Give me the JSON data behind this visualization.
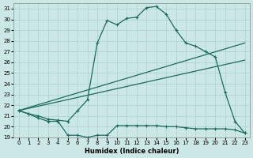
{
  "xlabel": "Humidex (Indice chaleur)",
  "bg_color": "#cce8e6",
  "grid_color": "#aacfcd",
  "line_color": "#1a6b5e",
  "xlim": [
    -0.5,
    23.5
  ],
  "ylim": [
    19,
    31.5
  ],
  "yticks": [
    19,
    20,
    21,
    22,
    23,
    24,
    25,
    26,
    27,
    28,
    29,
    30,
    31
  ],
  "xticks": [
    0,
    1,
    2,
    3,
    4,
    5,
    6,
    7,
    8,
    9,
    10,
    11,
    12,
    13,
    14,
    15,
    16,
    17,
    18,
    19,
    20,
    21,
    22,
    23
  ],
  "curve_main_x": [
    0,
    1,
    2,
    3,
    4,
    5,
    6,
    7,
    8,
    9,
    10,
    11,
    12,
    13,
    14,
    15,
    16,
    17,
    18,
    19,
    20,
    21,
    22,
    23
  ],
  "curve_main_y": [
    21.5,
    21.2,
    21.0,
    20.7,
    20.6,
    20.5,
    21.5,
    22.5,
    27.8,
    29.9,
    29.5,
    30.1,
    30.2,
    31.1,
    31.2,
    30.5,
    29.0,
    27.8,
    27.5,
    27.0,
    26.5,
    23.2,
    20.5,
    19.4
  ],
  "curve_line1_x": [
    0,
    23
  ],
  "curve_line1_y": [
    21.5,
    26.2
  ],
  "curve_line2_x": [
    0,
    23
  ],
  "curve_line2_y": [
    21.5,
    27.8
  ],
  "curve_min_x": [
    0,
    1,
    2,
    3,
    4,
    5,
    6,
    7,
    8,
    9,
    10,
    11,
    12,
    13,
    14,
    15,
    16,
    17,
    18,
    19,
    20,
    21,
    22,
    23
  ],
  "curve_min_y": [
    21.5,
    21.2,
    20.8,
    20.5,
    20.5,
    19.2,
    19.2,
    19.0,
    19.2,
    19.2,
    20.1,
    20.1,
    20.1,
    20.1,
    20.1,
    20.0,
    20.0,
    19.9,
    19.8,
    19.8,
    19.8,
    19.8,
    19.7,
    19.4
  ]
}
